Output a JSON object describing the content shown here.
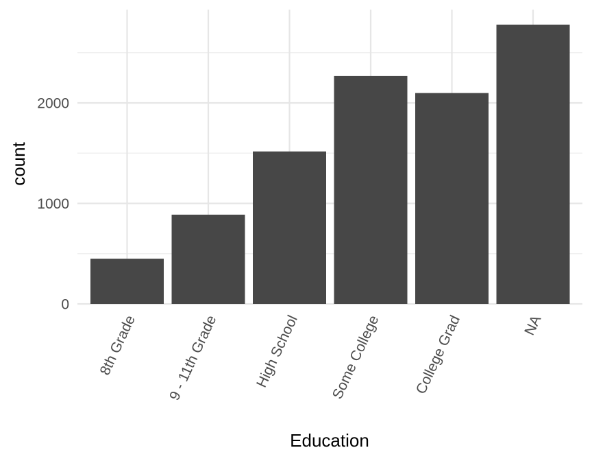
{
  "chart_data": {
    "type": "bar",
    "categories": [
      "8th Grade",
      "9 - 11th Grade",
      "High School",
      "Some College",
      "College Grad",
      "NA"
    ],
    "values": [
      450,
      888,
      1517,
      2267,
      2098,
      2779
    ],
    "title": "",
    "xlabel": "Education",
    "ylabel": "count",
    "ylim": [
      0,
      2900
    ],
    "y_ticks": [
      0,
      1000,
      2000
    ],
    "y_tick_labels": [
      "0",
      "1000",
      "2000"
    ],
    "y_minor_ticks": [
      500,
      1500,
      2500
    ],
    "grid": true,
    "legend": "none",
    "x_tick_label_rotation_deg": -65,
    "colors": {
      "bar": "#474747",
      "panel_background": "#ffffff",
      "grid_major": "#e6e6e6",
      "grid_minor": "#f0f0f0",
      "tick_text": "#4d4d4d",
      "axis_title": "#000000"
    }
  }
}
